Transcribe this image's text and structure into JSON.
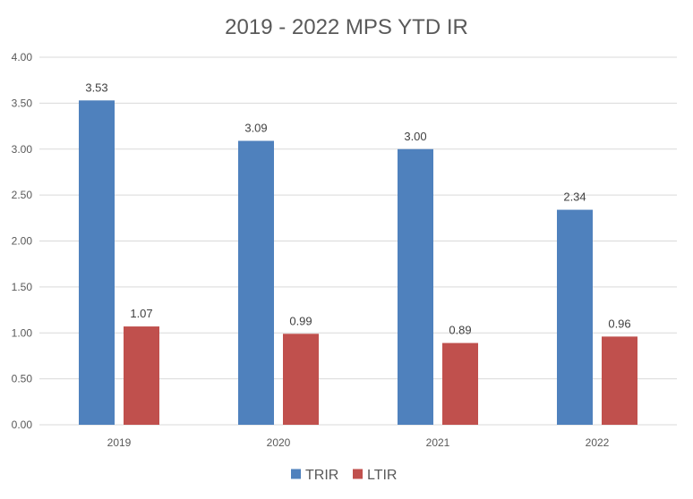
{
  "chart_data": {
    "type": "bar",
    "title": "2019 - 2022 MPS YTD IR",
    "xlabel": "",
    "ylabel": "",
    "categories": [
      "2019",
      "2020",
      "2021",
      "2022"
    ],
    "series": [
      {
        "name": "TRIR",
        "color": "#4F81BD",
        "values": [
          3.53,
          3.09,
          3.0,
          2.34
        ]
      },
      {
        "name": "LTIR",
        "color": "#C0504D",
        "values": [
          1.07,
          0.99,
          0.89,
          0.96
        ]
      }
    ],
    "ylim": [
      0,
      4
    ],
    "yticks": [
      "0.00",
      "0.50",
      "1.00",
      "1.50",
      "2.00",
      "2.50",
      "3.00",
      "3.50",
      "4.00"
    ],
    "grid": true,
    "legend_position": "bottom"
  }
}
